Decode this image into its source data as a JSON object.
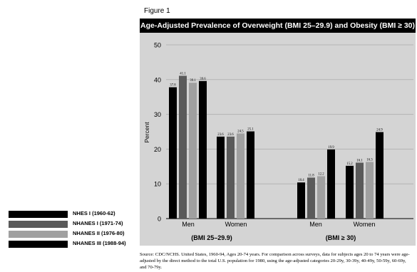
{
  "figure_label": "Figure 1",
  "source_text": "Source: CDC/NCHS. United States, 1960-94, Ages 20-74 years. For comparison across surveys, data for subjects ages 20 to 74 years were age-adjusted by the direct method to the total U.S. population for 1980, using the age-adjusted categories 20-29y, 30-39y, 40-49y, 50-59y, 60-69y, and 70-79y.",
  "chart_data": {
    "type": "bar",
    "title": "Age-Adjusted Prevalence of Overweight (BMI 25–29.9) and Obesity (BMI ≥ 30)",
    "ylabel": "Percent",
    "xlabel": "",
    "ylim": [
      0,
      50
    ],
    "yticks": [
      "0",
      "10",
      "20",
      "30",
      "40",
      "50"
    ],
    "grid": true,
    "legend_position": "bottom-left",
    "series_colors": [
      "#000000",
      "#5a5a5a",
      "#a0a0a0",
      "#000000"
    ],
    "series": [
      {
        "name": "NHES I (1960-62)",
        "values": [
          37.8,
          23.6,
          10.4,
          15.2
        ]
      },
      {
        "name": "NHANES I (1971-74)",
        "values": [
          41.1,
          23.6,
          11.8,
          16.1
        ]
      },
      {
        "name": "NHANES II (1976-80)",
        "values": [
          39.1,
          24.5,
          12.2,
          16.3
        ]
      },
      {
        "name": "NHANES III (1988-94)",
        "values": [
          39.6,
          25.1,
          19.9,
          24.9
        ]
      }
    ],
    "groups": [
      {
        "label": "(BMI 25–29.9)",
        "categories": [
          "Men",
          "Women"
        ]
      },
      {
        "label": "(BMI ≥ 30)",
        "categories": [
          "Men",
          "Women"
        ]
      }
    ],
    "value_labels": [
      [
        "37.8",
        "23.6",
        "10.4",
        "15.2"
      ],
      [
        "41.1",
        "23.6",
        "11.8",
        "16.1"
      ],
      [
        "39.1",
        "24.5",
        "12.2",
        "16.3"
      ],
      [
        "39.6",
        "25.1",
        "19.9",
        "24.9"
      ]
    ]
  }
}
